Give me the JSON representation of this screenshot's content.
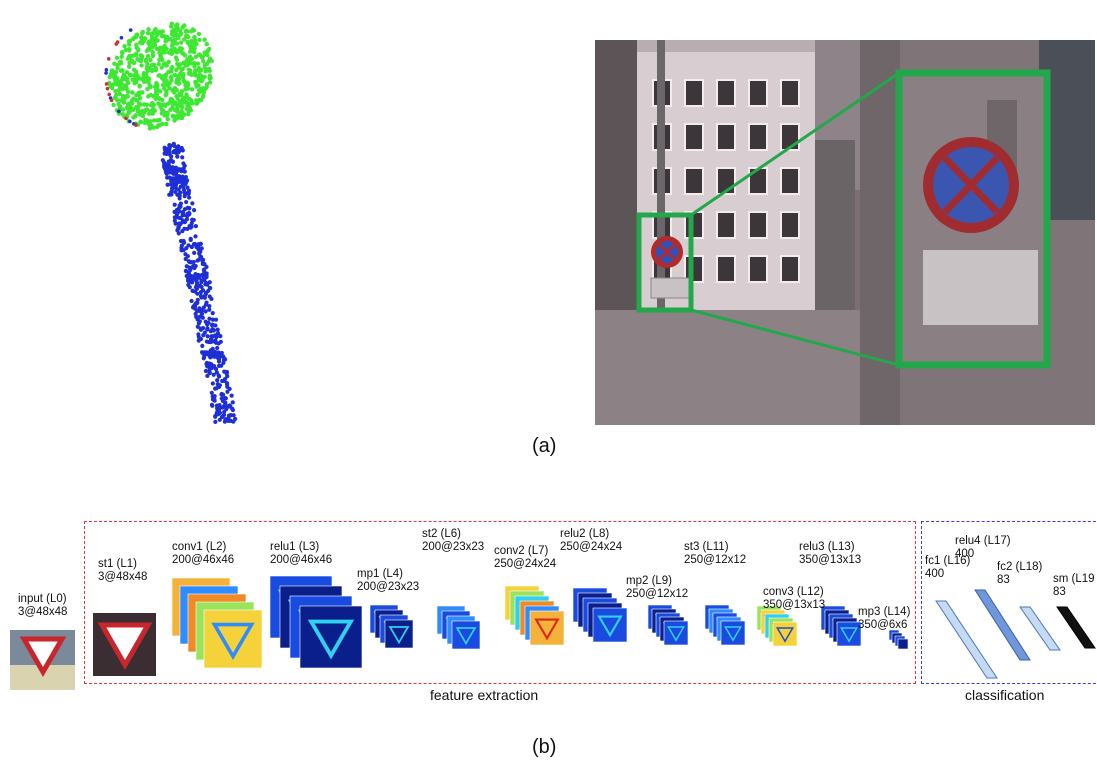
{
  "panel_a": {
    "label": "(a)"
  },
  "panel_b": {
    "label": "(b)"
  },
  "sections": {
    "extraction": "feature extraction",
    "classification": "classification"
  },
  "layers": [
    {
      "id": "L0",
      "name": "input (L0)",
      "size": "3@48x48"
    },
    {
      "id": "L1",
      "name": "st1 (L1)",
      "size": "3@48x48"
    },
    {
      "id": "L2",
      "name": "conv1 (L2)",
      "size": "200@46x46"
    },
    {
      "id": "L3",
      "name": "relu1 (L3)",
      "size": "200@46x46"
    },
    {
      "id": "L4",
      "name": "mp1 (L4)",
      "size": "200@23x23"
    },
    {
      "id": "L6",
      "name": "st2 (L6)",
      "size": "200@23x23"
    },
    {
      "id": "L7",
      "name": "conv2 (L7)",
      "size": "250@24x24"
    },
    {
      "id": "L8",
      "name": "relu2 (L8)",
      "size": "250@24x24"
    },
    {
      "id": "L9",
      "name": "mp2 (L9)",
      "size": "250@12x12"
    },
    {
      "id": "L11",
      "name": "st3 (L11)",
      "size": "250@12x12"
    },
    {
      "id": "L12",
      "name": "conv3 (L12)",
      "size": "350@13x13"
    },
    {
      "id": "L13",
      "name": "relu3 (L13)",
      "size": "350@13x13"
    },
    {
      "id": "L14",
      "name": "mp3 (L14)",
      "size": "350@6x6"
    },
    {
      "id": "L16",
      "name": "fc1 (L16)",
      "size": "400"
    },
    {
      "id": "L17",
      "name": "relu4 (L17)",
      "size": "400"
    },
    {
      "id": "L18",
      "name": "fc2 (L18)",
      "size": "83"
    },
    {
      "id": "L19",
      "name": "sm (L19",
      "size": "83"
    }
  ],
  "colors": {
    "extraction_border": "#e23a3a",
    "classification_border": "#3a3ae2",
    "highlight": "#22a84a"
  }
}
